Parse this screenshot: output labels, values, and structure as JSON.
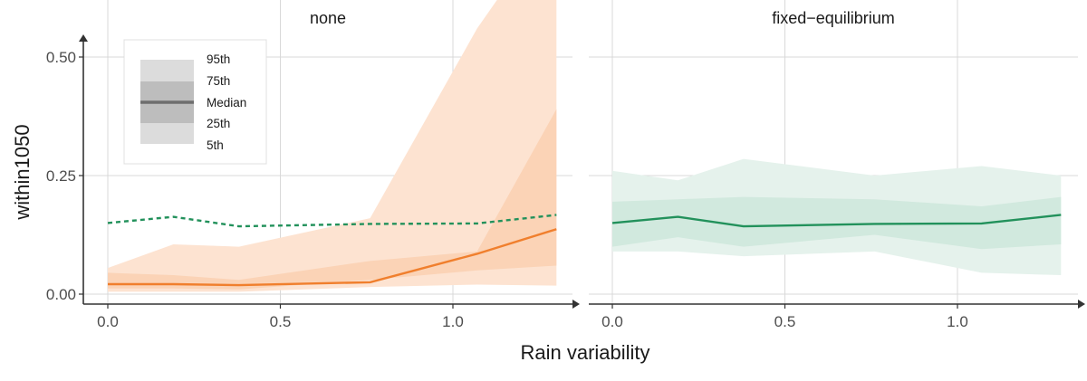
{
  "chart_data": {
    "type": "area",
    "xlabel": "Rain variability",
    "ylabel": "within1050",
    "xlim": [
      -0.05,
      1.33
    ],
    "ylim": [
      -0.02,
      0.53
    ],
    "x_ticks": [
      0.0,
      0.5,
      1.0
    ],
    "x_tick_labels": [
      "0.0",
      "0.5",
      "1.0"
    ],
    "y_ticks": [
      0.0,
      0.25,
      0.5
    ],
    "y_tick_labels": [
      "0.00",
      "0.25",
      "0.50"
    ],
    "grid": true,
    "legend": {
      "placement": "top-left",
      "labels": [
        "95th",
        "75th",
        "Median",
        "25th",
        "5th"
      ],
      "band_colors": [
        "#dcdcdc",
        "#bdbdbd"
      ],
      "median_color": "#6e6e6e"
    },
    "panels": [
      {
        "title": "none",
        "color": "#f07f2d",
        "band_outer_color": "#fde3d1",
        "band_inner_color": "#fbd3b6",
        "x": [
          0.0,
          0.19,
          0.38,
          0.76,
          1.07,
          1.3
        ],
        "median": [
          0.021,
          0.021,
          0.019,
          0.025,
          0.085,
          0.137
        ],
        "p5": [
          0.005,
          0.005,
          0.005,
          0.015,
          0.02,
          0.018
        ],
        "p25": [
          0.012,
          0.012,
          0.01,
          0.03,
          0.05,
          0.06
        ],
        "p75": [
          0.045,
          0.04,
          0.03,
          0.07,
          0.09,
          0.39
        ],
        "p95": [
          0.055,
          0.105,
          0.1,
          0.16,
          0.56,
          0.8
        ],
        "reference_series": {
          "style": "dashed",
          "color": "#22915b",
          "x": [
            0.0,
            0.19,
            0.38,
            0.76,
            1.07,
            1.3
          ],
          "values": [
            0.15,
            0.163,
            0.143,
            0.148,
            0.149,
            0.167
          ]
        }
      },
      {
        "title": "fixed−equilibrium",
        "color": "#22915b",
        "band_outer_color": "#e5f2ec",
        "band_inner_color": "#d1e9de",
        "x": [
          0.0,
          0.19,
          0.38,
          0.76,
          1.07,
          1.3
        ],
        "median": [
          0.15,
          0.163,
          0.143,
          0.148,
          0.149,
          0.167
        ],
        "p5": [
          0.09,
          0.09,
          0.08,
          0.09,
          0.045,
          0.04
        ],
        "p25": [
          0.1,
          0.12,
          0.1,
          0.125,
          0.095,
          0.105
        ],
        "p75": [
          0.195,
          0.2,
          0.205,
          0.2,
          0.185,
          0.205
        ],
        "p95": [
          0.26,
          0.24,
          0.285,
          0.25,
          0.27,
          0.25
        ]
      }
    ]
  }
}
